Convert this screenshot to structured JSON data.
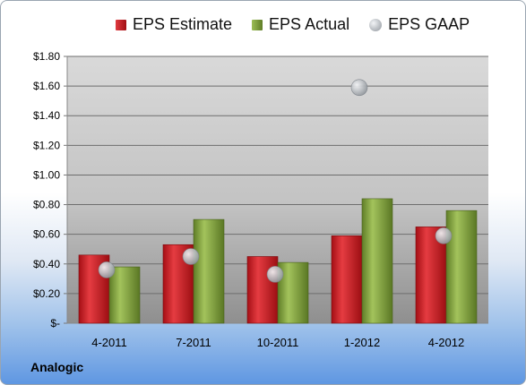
{
  "chart_data": {
    "type": "bar",
    "categories": [
      "4-2011",
      "7-2011",
      "10-2011",
      "1-2012",
      "4-2012"
    ],
    "series": [
      {
        "name": "EPS Estimate",
        "kind": "bar",
        "values": [
          0.46,
          0.53,
          0.45,
          0.59,
          0.65
        ],
        "color": "#c8161d"
      },
      {
        "name": "EPS Actual",
        "kind": "bar",
        "values": [
          0.38,
          0.7,
          0.41,
          0.84,
          0.76
        ],
        "color": "#7e9e3c"
      },
      {
        "name": "EPS GAAP",
        "kind": "scatter",
        "values": [
          0.36,
          0.45,
          0.33,
          1.59,
          0.59
        ],
        "color": "#a6abb2"
      }
    ],
    "y_ticks": [
      "$-",
      "$0.20",
      "$0.40",
      "$0.60",
      "$0.80",
      "$1.00",
      "$1.20",
      "$1.40",
      "$1.60",
      "$1.80"
    ],
    "ylim": [
      0,
      1.8
    ],
    "grid": true,
    "legend_position": "top"
  },
  "company": "Analogic"
}
